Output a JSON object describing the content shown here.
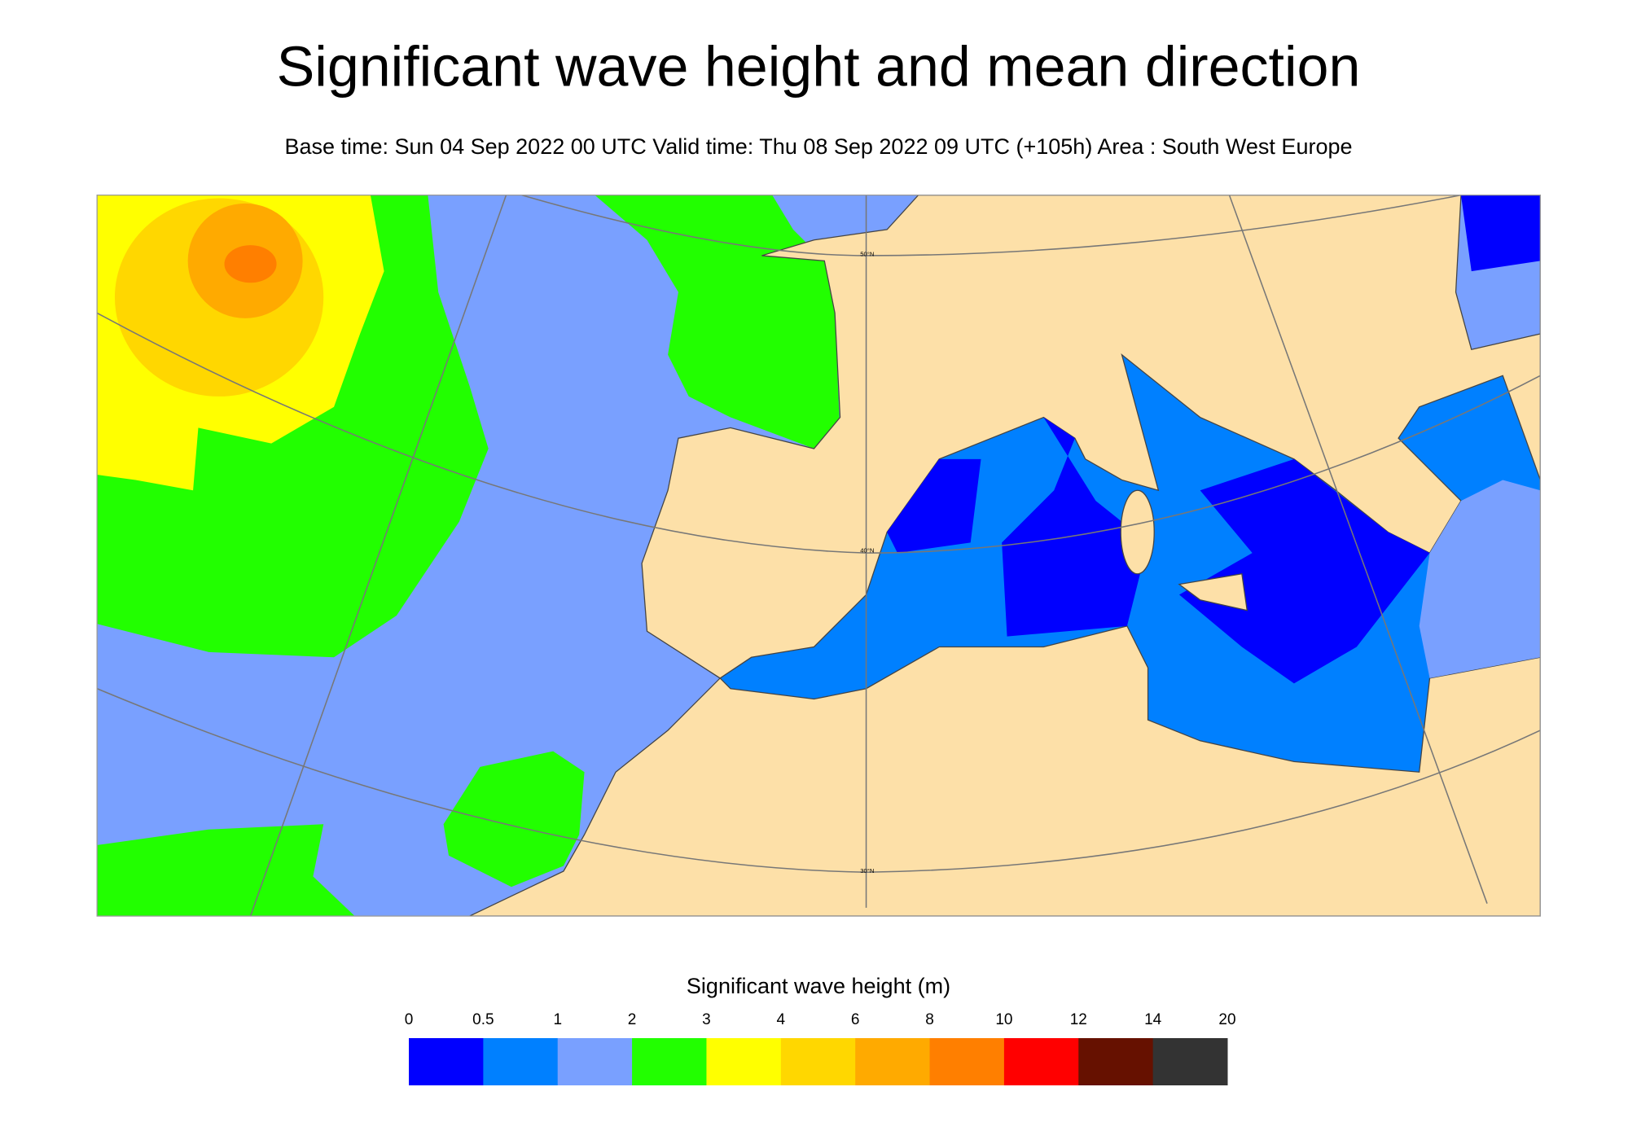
{
  "title": "Significant wave height and mean direction",
  "subtitle": "Base time: Sun 04 Sep 2022 00 UTC Valid time: Thu 08 Sep 2022 09 UTC (+105h) Area : South West Europe",
  "map": {
    "latitude_labels": [
      "50°N",
      "40°N",
      "30°N"
    ]
  },
  "legend": {
    "title": "Significant wave height (m)",
    "ticks": [
      0,
      0.5,
      1,
      2,
      3,
      4,
      6,
      8,
      10,
      12,
      14,
      20
    ],
    "colors": [
      "#0000ff",
      "#0080ff",
      "#79a0ff",
      "#22ff00",
      "#ffff00",
      "#ffd700",
      "#ffaa00",
      "#ff7f00",
      "#ff0000",
      "#661100",
      "#333333"
    ]
  }
}
